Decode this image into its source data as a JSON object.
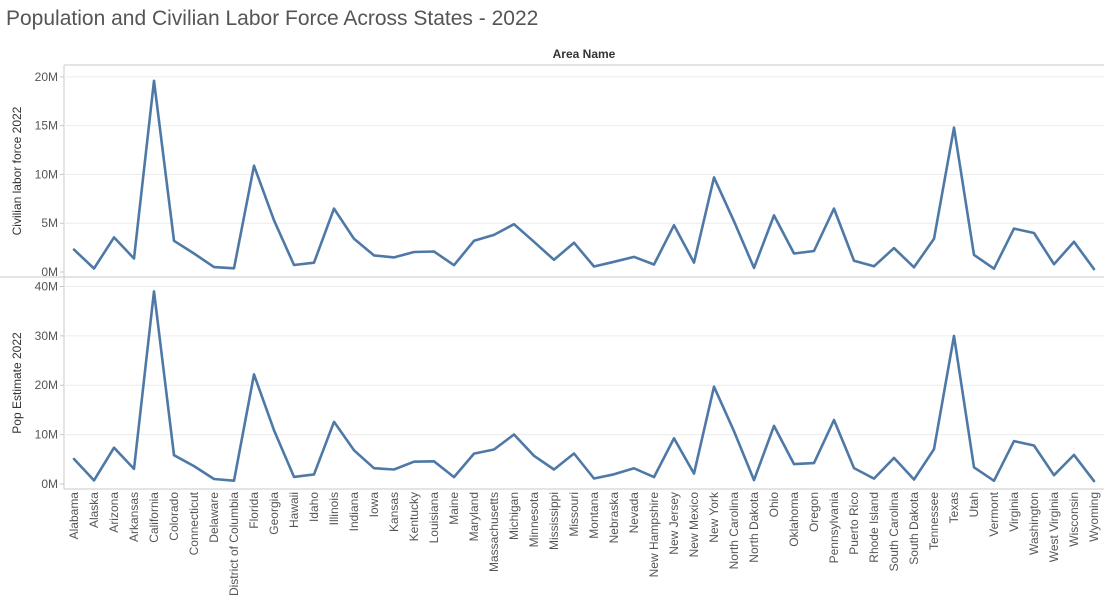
{
  "title": "Population and Civilian Labor Force Across States - 2022",
  "header": "Area Name",
  "colors": {
    "line": "#4e79a7",
    "grid": "#ececec",
    "axis": "#c8c8c8",
    "text": "#555555"
  },
  "chart_data": [
    {
      "type": "line",
      "ylabel": "Civilian labor force 2022",
      "ylim": [
        0,
        20500000
      ],
      "yticks": [
        0,
        5000000,
        10000000,
        15000000,
        20000000
      ],
      "ytick_labels": [
        "0M",
        "5M",
        "10M",
        "15M",
        "20M"
      ],
      "categories": [
        "Alabama",
        "Alaska",
        "Arizona",
        "Arkansas",
        "California",
        "Colorado",
        "Connecticut",
        "Delaware",
        "District of Columbia",
        "Florida",
        "Georgia",
        "Hawaii",
        "Idaho",
        "Illinois",
        "Indiana",
        "Iowa",
        "Kansas",
        "Kentucky",
        "Louisiana",
        "Maine",
        "Maryland",
        "Massachusetts",
        "Michigan",
        "Minnesota",
        "Mississippi",
        "Missouri",
        "Montana",
        "Nebraska",
        "Nevada",
        "New Hampshire",
        "New Jersey",
        "New Mexico",
        "New York",
        "North Carolina",
        "North Dakota",
        "Ohio",
        "Oklahoma",
        "Oregon",
        "Pennsylvania",
        "Puerto Rico",
        "Rhode Island",
        "South Carolina",
        "South Dakota",
        "Tennessee",
        "Texas",
        "Utah",
        "Vermont",
        "Virginia",
        "Washington",
        "West Virginia",
        "Wisconsin",
        "Wyoming"
      ],
      "values": [
        2300000,
        360000,
        3550000,
        1380000,
        19600000,
        3200000,
        1900000,
        500000,
        380000,
        10900000,
        5300000,
        720000,
        950000,
        6500000,
        3400000,
        1700000,
        1500000,
        2050000,
        2100000,
        700000,
        3200000,
        3800000,
        4900000,
        3100000,
        1250000,
        3000000,
        560000,
        1050000,
        1550000,
        770000,
        4800000,
        960000,
        9700000,
        5200000,
        420000,
        5800000,
        1900000,
        2150000,
        6500000,
        1150000,
        580000,
        2450000,
        480000,
        3400000,
        14800000,
        1750000,
        340000,
        4450000,
        4000000,
        800000,
        3100000,
        300000
      ]
    },
    {
      "type": "line",
      "ylabel": "Pop Estimate 2022",
      "ylim": [
        0,
        40500000
      ],
      "yticks": [
        0,
        10000000,
        20000000,
        30000000,
        40000000
      ],
      "ytick_labels": [
        "0M",
        "10M",
        "20M",
        "30M",
        "40M"
      ],
      "categories": [
        "Alabama",
        "Alaska",
        "Arizona",
        "Arkansas",
        "California",
        "Colorado",
        "Connecticut",
        "Delaware",
        "District of Columbia",
        "Florida",
        "Georgia",
        "Hawaii",
        "Idaho",
        "Illinois",
        "Indiana",
        "Iowa",
        "Kansas",
        "Kentucky",
        "Louisiana",
        "Maine",
        "Maryland",
        "Massachusetts",
        "Michigan",
        "Minnesota",
        "Mississippi",
        "Missouri",
        "Montana",
        "Nebraska",
        "Nevada",
        "New Hampshire",
        "New Jersey",
        "New Mexico",
        "New York",
        "North Carolina",
        "North Dakota",
        "Ohio",
        "Oklahoma",
        "Oregon",
        "Pennsylvania",
        "Puerto Rico",
        "Rhode Island",
        "South Carolina",
        "South Dakota",
        "Tennessee",
        "Texas",
        "Utah",
        "Vermont",
        "Virginia",
        "Washington",
        "West Virginia",
        "Wisconsin",
        "Wyoming"
      ],
      "values": [
        5070000,
        730000,
        7360000,
        3050000,
        39000000,
        5840000,
        3630000,
        1020000,
        670000,
        22200000,
        10900000,
        1440000,
        1940000,
        12600000,
        6830000,
        3200000,
        2940000,
        4510000,
        4590000,
        1390000,
        6160000,
        6980000,
        10030000,
        5720000,
        2940000,
        6180000,
        1120000,
        1970000,
        3180000,
        1400000,
        9260000,
        2110000,
        19700000,
        10700000,
        780000,
        11760000,
        4020000,
        4240000,
        12970000,
        3220000,
        1090000,
        5280000,
        910000,
        7050000,
        30000000,
        3380000,
        650000,
        8680000,
        7790000,
        1780000,
        5890000,
        580000
      ]
    }
  ]
}
